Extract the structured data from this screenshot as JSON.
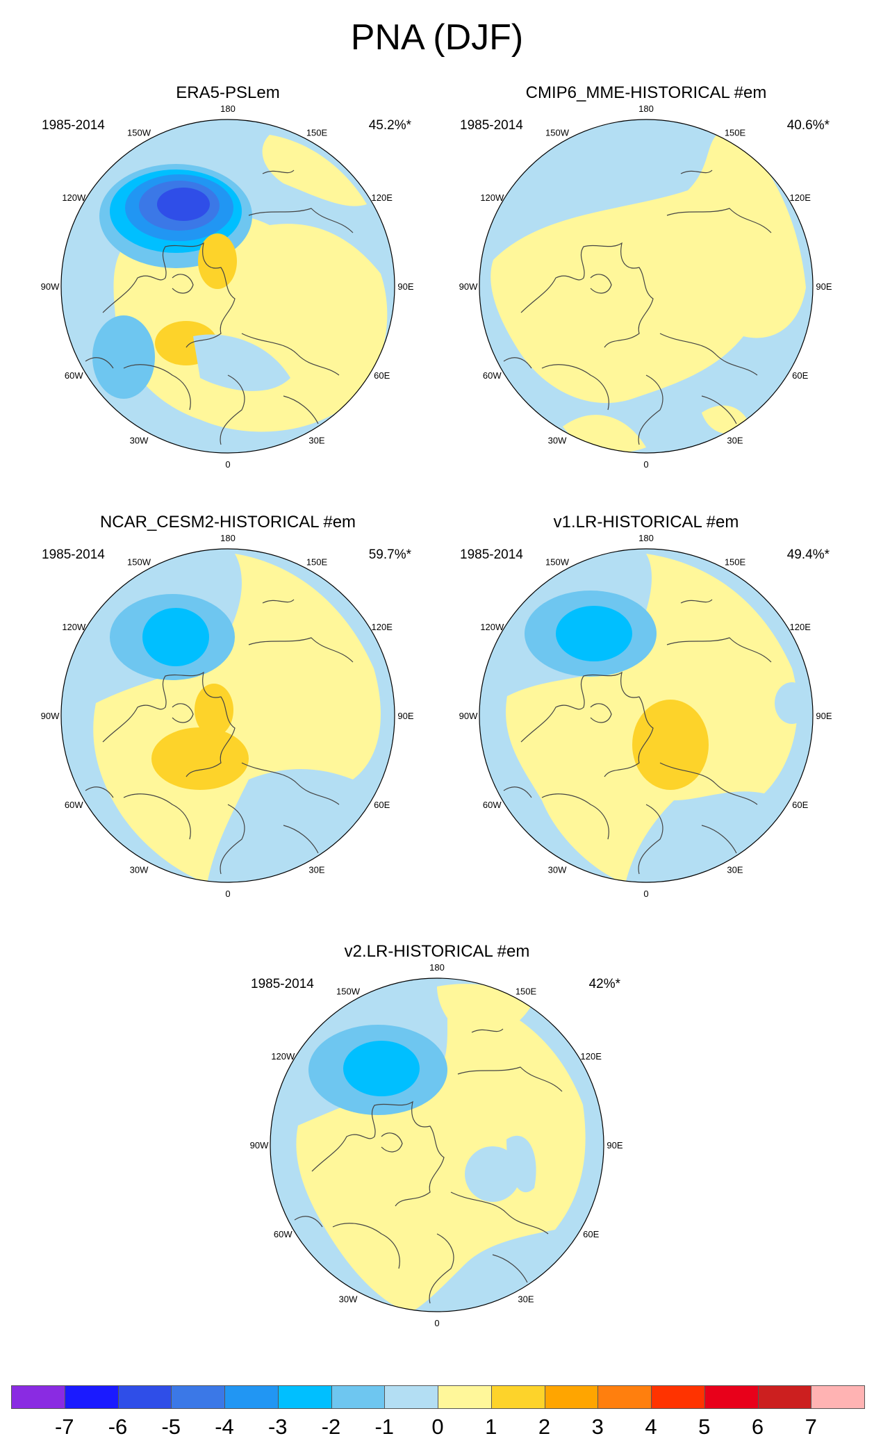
{
  "figure": {
    "title": "PNA (DJF)"
  },
  "panels": [
    {
      "title": "ERA5-PSLem",
      "period": "1985-2014",
      "variance": "45.2%*"
    },
    {
      "title": "CMIP6_MME-HISTORICAL  #em",
      "period": "1985-2014",
      "variance": "40.6%*"
    },
    {
      "title": "NCAR_CESM2-HISTORICAL  #em",
      "period": "1985-2014",
      "variance": "59.7%*"
    },
    {
      "title": "v1.LR-HISTORICAL  #em",
      "period": "1985-2014",
      "variance": "49.4%*"
    },
    {
      "title": "v2.LR-HISTORICAL  #em",
      "period": "1985-2014",
      "variance": "42%*"
    }
  ],
  "lon_labels": [
    "180",
    "150E",
    "120E",
    "90E",
    "60E",
    "30E",
    "0",
    "30W",
    "60W",
    "90W",
    "120W",
    "150W"
  ],
  "colorbar": {
    "labels": [
      "-7",
      "-6",
      "-5",
      "-4",
      "-3",
      "-2",
      "-1",
      "0",
      "1",
      "2",
      "3",
      "4",
      "5",
      "6",
      "7"
    ],
    "colors": [
      "#8a2be2",
      "#1a1aff",
      "#2f4ee8",
      "#3b78e7",
      "#2196f3",
      "#00bfff",
      "#6ec6f0",
      "#b3def3",
      "#fff79a",
      "#fdd32a",
      "#ffa500",
      "#ff7f0e",
      "#ff3300",
      "#e8001a",
      "#cc1f1f",
      "#ffb3b3"
    ]
  }
}
